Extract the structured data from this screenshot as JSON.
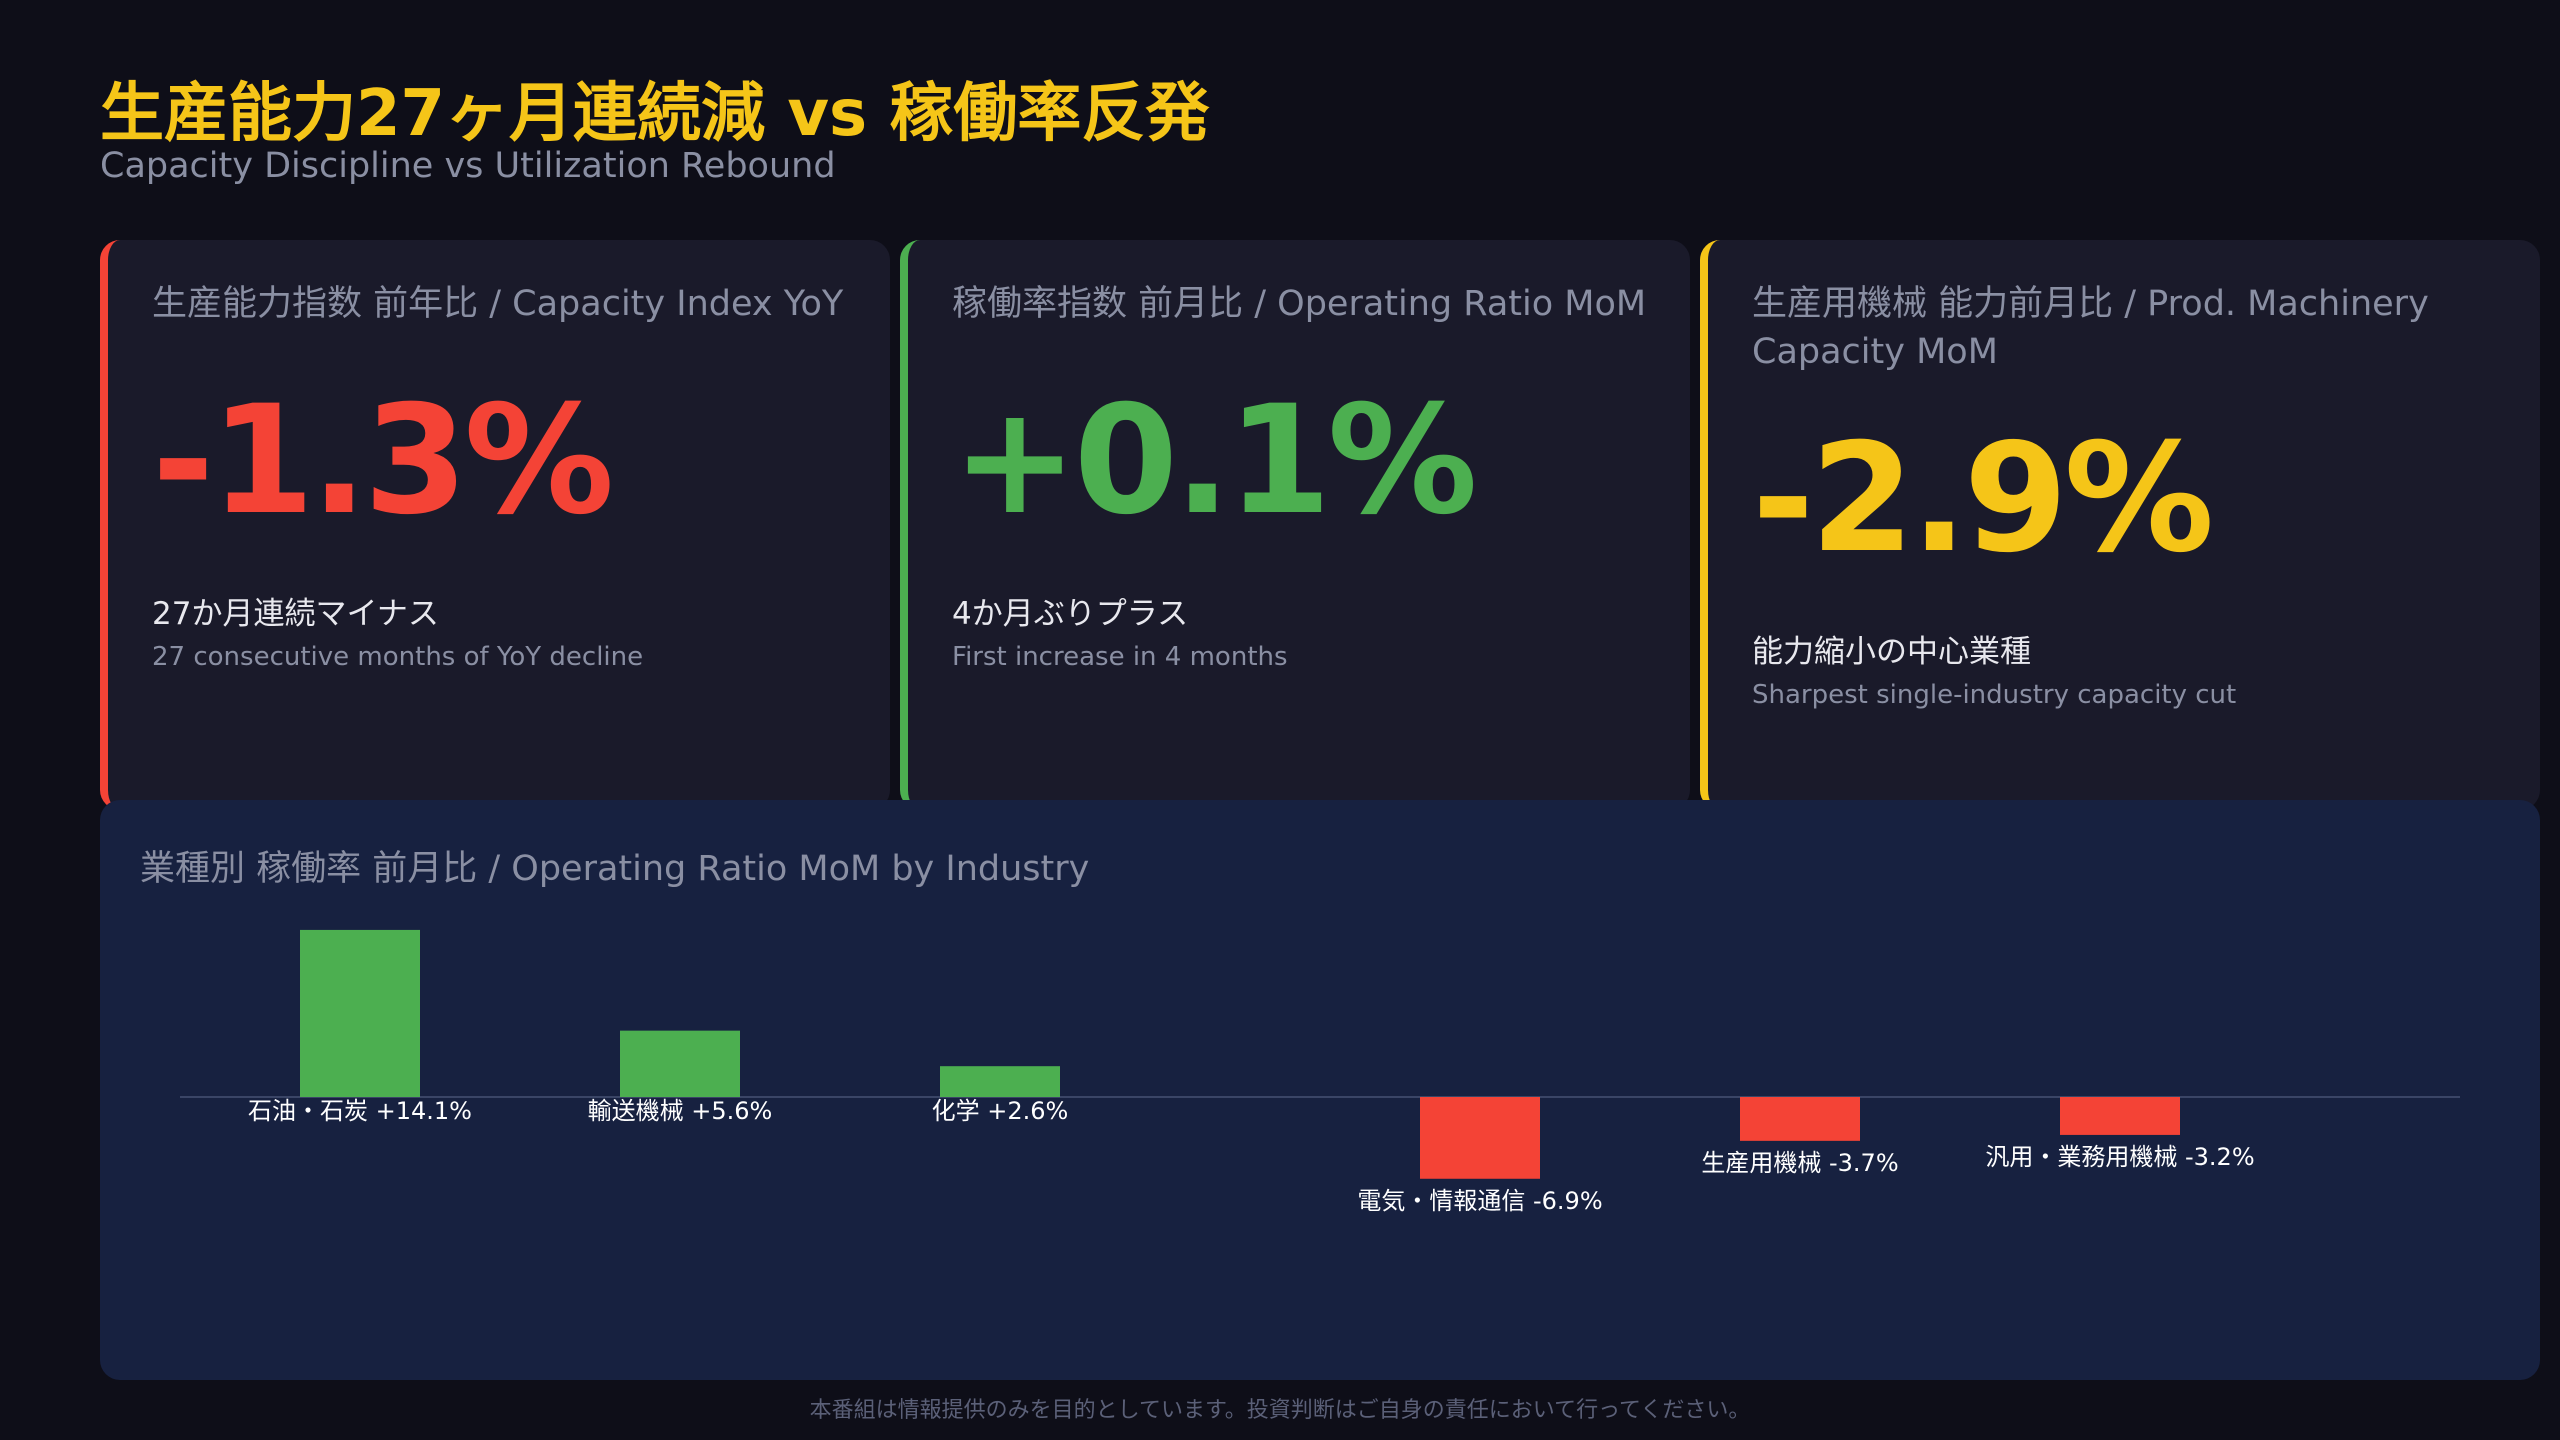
{
  "header": {
    "title": "生産能力27ヶ月連続減 vs 稼働率反発",
    "subtitle": "Capacity Discipline vs Utilization Rebound"
  },
  "cards": [
    {
      "label": "生産能力指数 前年比 / Capacity Index YoY",
      "value": "-1.3%",
      "note_jp": "27か月連続マイナス",
      "note_en": "27 consecutive months of YoY decline",
      "color": "#f44336"
    },
    {
      "label": "稼働率指数 前月比 / Operating Ratio MoM",
      "value": "+0.1%",
      "note_jp": "4か月ぶりプラス",
      "note_en": "First increase in 4 months",
      "color": "#4caf50"
    },
    {
      "label": "生産用機械 能力前月比 / Prod. Machinery Capacity MoM",
      "value": "-2.9%",
      "note_jp": "能力縮小の中心業種",
      "note_en": "Sharpest single-industry capacity cut",
      "color": "#f5c518"
    }
  ],
  "chart_data": {
    "type": "bar",
    "title": "業種別 稼働率 前月比 / Operating Ratio MoM by Industry",
    "categories": [
      "石油・石炭",
      "輸送機械",
      "化学",
      "電気・情報通信",
      "生産用機械",
      "汎用・業務用機械"
    ],
    "values": [
      14.1,
      5.6,
      2.6,
      -6.9,
      -3.7,
      -3.2
    ],
    "labels": [
      "石油・石炭 +14.1%",
      "輸送機械 +5.6%",
      "化学 +2.6%",
      "電気・情報通信 -6.9%",
      "生産用機械 -3.7%",
      "汎用・業務用機械 -3.2%"
    ],
    "positive_color": "#4caf50",
    "negative_color": "#f44336",
    "grid": false
  },
  "footer": {
    "disclaimer": "本番組は情報提供のみを目的としています。投資判断はご自身の責任において行ってください。"
  }
}
